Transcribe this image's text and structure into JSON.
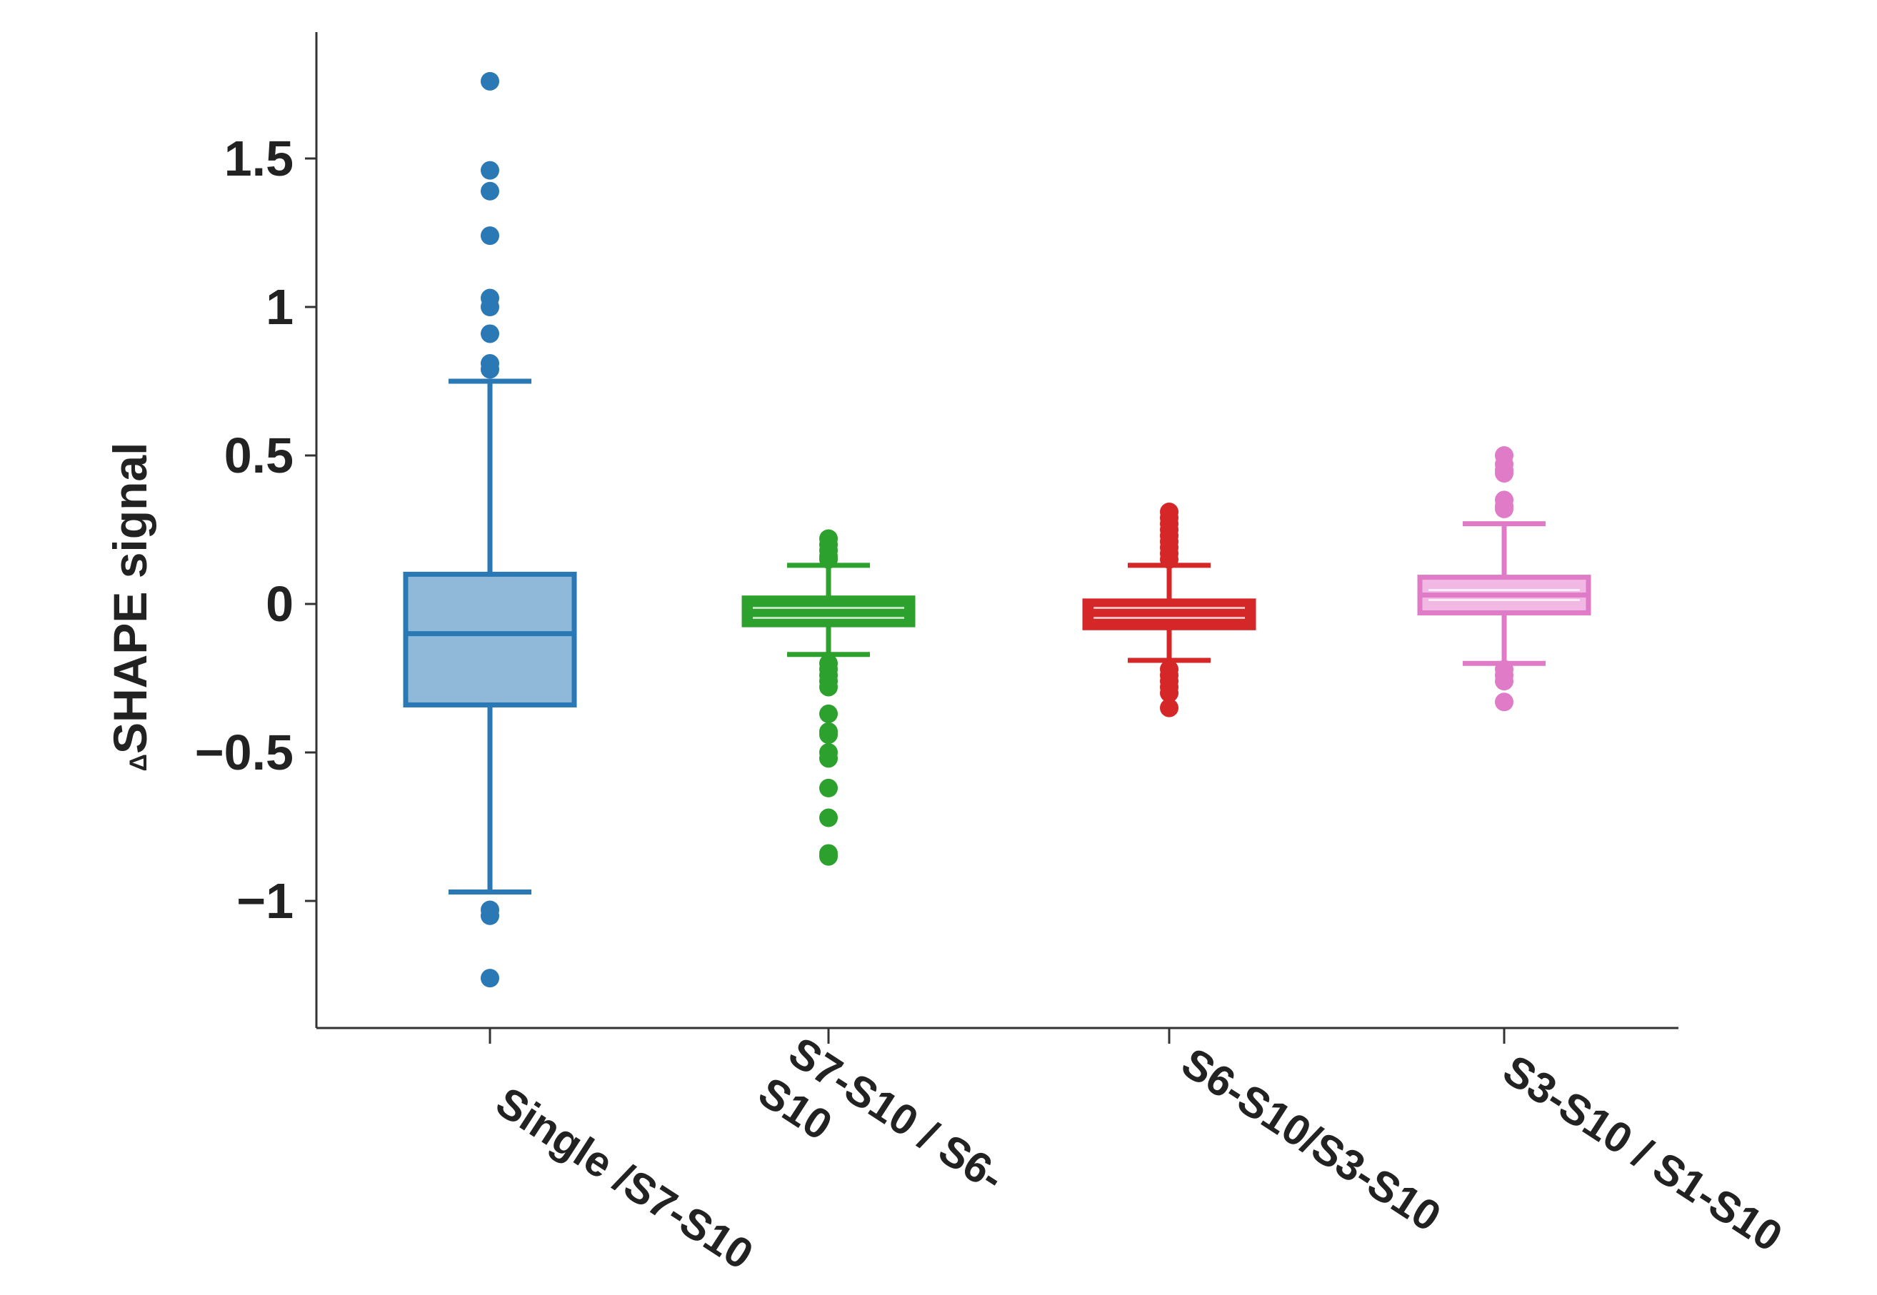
{
  "chart_data": {
    "type": "box",
    "ylabel_prefix": "Δ",
    "ylabel": "SHAPE signal",
    "xlabel": "",
    "ylim": [
      -1.42,
      1.93
    ],
    "yticks": [
      -1,
      -0.5,
      0,
      0.5,
      1,
      1.5
    ],
    "ytick_labels": [
      "−1",
      "−0.5",
      "0",
      "0.5",
      "1",
      "1.5"
    ],
    "categories": [
      {
        "label_lines": [
          "Single /S7-S10"
        ],
        "label": "Single /S7-S10",
        "color": "#2a78b4",
        "fill": "#90b8d8",
        "inner_line": false,
        "q1": -0.34,
        "median": -0.1,
        "q3": 0.1,
        "whisker_low": -0.97,
        "whisker_high": 0.75,
        "outliers": [
          1.76,
          1.46,
          1.39,
          1.24,
          1.03,
          1.0,
          0.91,
          0.81,
          0.79,
          -1.03,
          -1.05,
          -1.26
        ]
      },
      {
        "label_lines": [
          "S7-S10 / S6-",
          "S10"
        ],
        "label": "S7-S10 / S6-S10",
        "color": "#2da12d",
        "fill": "#2da12d",
        "inner_line": true,
        "q1": -0.07,
        "median": -0.03,
        "q3": 0.02,
        "whisker_low": -0.17,
        "whisker_high": 0.13,
        "outliers": [
          0.22,
          0.2,
          0.18,
          0.16,
          0.15,
          -0.2,
          -0.22,
          -0.24,
          -0.26,
          -0.28,
          -0.37,
          -0.43,
          -0.44,
          -0.5,
          -0.52,
          -0.62,
          -0.72,
          -0.84,
          -0.85
        ]
      },
      {
        "label_lines": [
          "S6-S10/S3-S10"
        ],
        "label": "S6-S10/S3-S10",
        "color": "#d52628",
        "fill": "#d52628",
        "inner_line": true,
        "q1": -0.08,
        "median": -0.03,
        "q3": 0.01,
        "whisker_low": -0.19,
        "whisker_high": 0.13,
        "outliers": [
          0.31,
          0.29,
          0.27,
          0.25,
          0.23,
          0.21,
          0.19,
          0.17,
          0.15,
          -0.22,
          -0.24,
          -0.26,
          -0.28,
          -0.3,
          -0.35
        ]
      },
      {
        "label_lines": [
          "S3-S10 / S1-S10"
        ],
        "label": "S3-S10 / S1-S10",
        "color": "#e07bc8",
        "fill": "#f1b8e3",
        "inner_line": true,
        "q1": -0.03,
        "median": 0.03,
        "q3": 0.09,
        "whisker_low": -0.2,
        "whisker_high": 0.27,
        "outliers": [
          0.5,
          0.47,
          0.45,
          0.44,
          0.35,
          0.33,
          0.32,
          -0.22,
          -0.24,
          -0.26,
          -0.33
        ]
      }
    ]
  }
}
